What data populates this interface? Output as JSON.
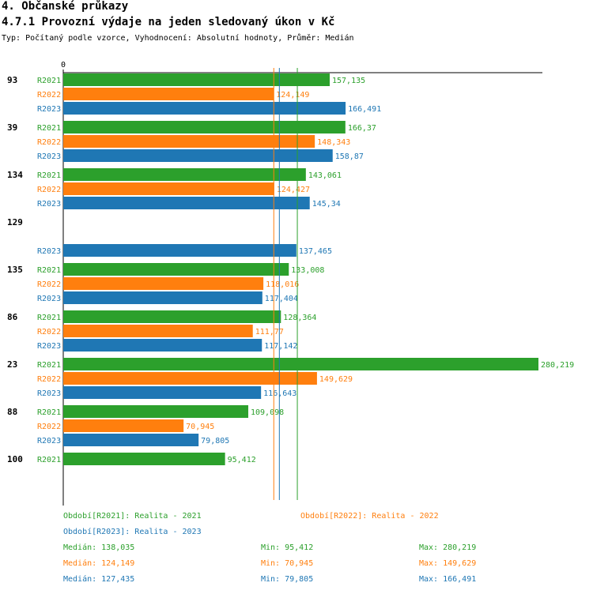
{
  "page": {
    "title": "4. Občanské průkazy",
    "subtitle": "4.7.1 Provozní výdaje na jeden sledovaný úkon v Kč",
    "type_line": "Typ: Počítaný podle vzorce, Vyhodnocení: Absolutní hodnoty, Průměr: Medián"
  },
  "colors": {
    "R2021": "#2ca02c",
    "R2022": "#ff7f0e",
    "R2023": "#1f77b4"
  },
  "chart_data": {
    "type": "bar",
    "orientation": "horizontal",
    "axis_zero_label": "0",
    "xlim": [
      0,
      280.219
    ],
    "series_names": [
      "R2021",
      "R2022",
      "R2023"
    ],
    "groups": [
      {
        "label": "93",
        "bars": [
          {
            "series": "R2021",
            "value": 157.135,
            "label": "157,135"
          },
          {
            "series": "R2022",
            "value": 124.149,
            "label": "124,149"
          },
          {
            "series": "R2023",
            "value": 166.491,
            "label": "166,491"
          }
        ]
      },
      {
        "label": "39",
        "bars": [
          {
            "series": "R2021",
            "value": 166.37,
            "label": "166,37"
          },
          {
            "series": "R2022",
            "value": 148.343,
            "label": "148,343"
          },
          {
            "series": "R2023",
            "value": 158.87,
            "label": "158,87"
          }
        ]
      },
      {
        "label": "134",
        "bars": [
          {
            "series": "R2021",
            "value": 143.061,
            "label": "143,061"
          },
          {
            "series": "R2022",
            "value": 124.427,
            "label": "124,427"
          },
          {
            "series": "R2023",
            "value": 145.34,
            "label": "145,34"
          }
        ]
      },
      {
        "label": "129",
        "bars": [
          {
            "series": "R2021",
            "value": null,
            "label": null
          },
          {
            "series": "R2022",
            "value": null,
            "label": null
          },
          {
            "series": "R2023",
            "value": 137.465,
            "label": "137,465"
          }
        ]
      },
      {
        "label": "135",
        "bars": [
          {
            "series": "R2021",
            "value": 133.008,
            "label": "133,008"
          },
          {
            "series": "R2022",
            "value": 118.016,
            "label": "118,016"
          },
          {
            "series": "R2023",
            "value": 117.404,
            "label": "117,404"
          }
        ]
      },
      {
        "label": "86",
        "bars": [
          {
            "series": "R2021",
            "value": 128.364,
            "label": "128,364"
          },
          {
            "series": "R2022",
            "value": 111.77,
            "label": "111,77"
          },
          {
            "series": "R2023",
            "value": 117.142,
            "label": "117,142"
          }
        ]
      },
      {
        "label": "23",
        "bars": [
          {
            "series": "R2021",
            "value": 280.219,
            "label": "280,219"
          },
          {
            "series": "R2022",
            "value": 149.629,
            "label": "149,629"
          },
          {
            "series": "R2023",
            "value": 116.643,
            "label": "116,643"
          }
        ]
      },
      {
        "label": "88",
        "bars": [
          {
            "series": "R2021",
            "value": 109.098,
            "label": "109,098"
          },
          {
            "series": "R2022",
            "value": 70.945,
            "label": "70,945"
          },
          {
            "series": "R2023",
            "value": 79.805,
            "label": "79,805"
          }
        ]
      },
      {
        "label": "100",
        "bars": [
          {
            "series": "R2021",
            "value": 95.412,
            "label": "95,412"
          },
          {
            "series": "R2022",
            "value": null,
            "label": null
          },
          {
            "series": "R2023",
            "value": null,
            "label": null
          }
        ]
      }
    ],
    "median_lines": [
      {
        "series": "R2021",
        "value": 138.035
      },
      {
        "series": "R2022",
        "value": 124.149
      },
      {
        "series": "R2023",
        "value": 127.435
      }
    ]
  },
  "legend": {
    "periods": [
      {
        "series": "R2021",
        "text": "Období[R2021]: Realita - 2021"
      },
      {
        "series": "R2022",
        "text": "Období[R2022]: Realita - 2022"
      },
      {
        "series": "R2023",
        "text": "Období[R2023]: Realita - 2023"
      }
    ],
    "stats": [
      {
        "series": "R2021",
        "median": "Medián: 138,035",
        "min": "Min: 95,412",
        "max": "Max: 280,219"
      },
      {
        "series": "R2022",
        "median": "Medián: 124,149",
        "min": "Min: 70,945",
        "max": "Max: 149,629"
      },
      {
        "series": "R2023",
        "median": "Medián: 127,435",
        "min": "Min: 79,805",
        "max": "Max: 166,491"
      }
    ]
  }
}
